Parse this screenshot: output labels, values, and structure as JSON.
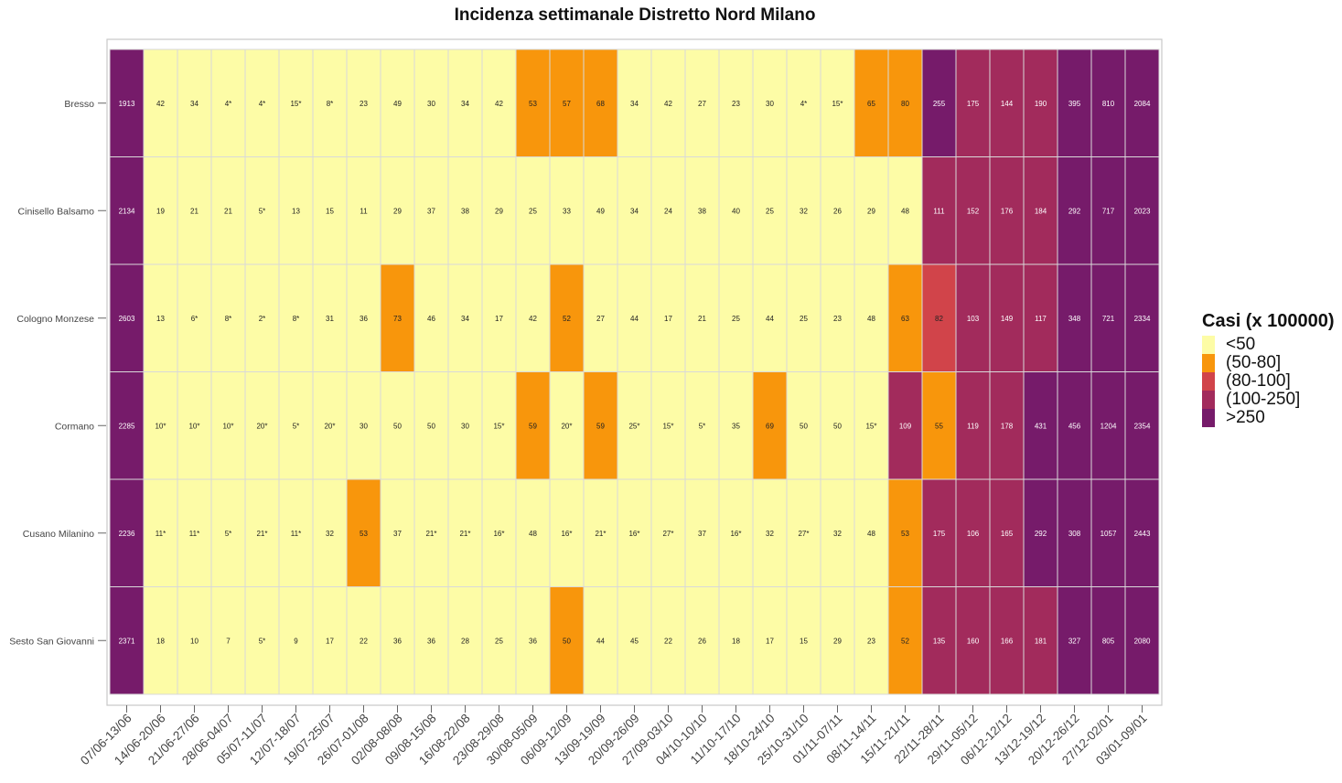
{
  "chart_data": {
    "type": "heatmap",
    "title": "Incidenza settimanale Distretto Nord Milano",
    "xlabel": "",
    "ylabel": "",
    "legend": {
      "title": "Casi (x 100000)",
      "placement": "right",
      "entries": [
        {
          "label": "<50",
          "color": "#fdfca6"
        },
        {
          "label": "(50-80]",
          "color": "#f8960c"
        },
        {
          "label": "(80-100]",
          "color": "#d1444a"
        },
        {
          "label": "(100-250]",
          "color": "#a22b5c"
        },
        {
          "label": ">250",
          "color": "#761b6a"
        }
      ]
    },
    "x_categories": [
      "07/06-13/06",
      "14/06-20/06",
      "21/06-27/06",
      "28/06-04/07",
      "05/07-11/07",
      "12/07-18/07",
      "19/07-25/07",
      "26/07-01/08",
      "02/08-08/08",
      "09/08-15/08",
      "16/08-22/08",
      "23/08-29/08",
      "30/08-05/09",
      "06/09-12/09",
      "13/09-19/09",
      "20/09-26/09",
      "27/09-03/10",
      "04/10-10/10",
      "11/10-17/10",
      "18/10-24/10",
      "25/10-31/10",
      "01/11-07/11",
      "08/11-14/11",
      "15/11-21/11",
      "22/11-28/11",
      "29/11-05/12",
      "06/12-12/12",
      "13/12-19/12",
      "20/12-26/12",
      "27/12-02/01",
      "03/01-09/01"
    ],
    "rows": [
      {
        "name": "Bresso",
        "labels": [
          "1913",
          "42",
          "34",
          "4*",
          "4*",
          "15*",
          "8*",
          "23",
          "49",
          "30",
          "34",
          "42",
          "53",
          "57",
          "68",
          "34",
          "42",
          "27",
          "23",
          "30",
          "4*",
          "15*",
          "65",
          "80",
          "255",
          "175",
          "144",
          "190",
          "395",
          "810",
          "2084"
        ],
        "classes": [
          4,
          0,
          0,
          0,
          0,
          0,
          0,
          0,
          0,
          0,
          0,
          0,
          1,
          1,
          1,
          0,
          0,
          0,
          0,
          0,
          0,
          0,
          1,
          1,
          4,
          3,
          3,
          3,
          4,
          4,
          4
        ]
      },
      {
        "name": "Cinisello Balsamo",
        "labels": [
          "2134",
          "19",
          "21",
          "21",
          "5*",
          "13",
          "15",
          "11",
          "29",
          "37",
          "38",
          "29",
          "25",
          "33",
          "49",
          "34",
          "24",
          "38",
          "40",
          "25",
          "32",
          "26",
          "29",
          "48",
          "111",
          "152",
          "176",
          "184",
          "292",
          "717",
          "2023"
        ],
        "classes": [
          4,
          0,
          0,
          0,
          0,
          0,
          0,
          0,
          0,
          0,
          0,
          0,
          0,
          0,
          0,
          0,
          0,
          0,
          0,
          0,
          0,
          0,
          0,
          0,
          3,
          3,
          3,
          3,
          4,
          4,
          4
        ]
      },
      {
        "name": "Cologno Monzese",
        "labels": [
          "2603",
          "13",
          "6*",
          "8*",
          "2*",
          "8*",
          "31",
          "36",
          "73",
          "46",
          "34",
          "17",
          "42",
          "52",
          "27",
          "44",
          "17",
          "21",
          "25",
          "44",
          "25",
          "23",
          "48",
          "63",
          "82",
          "103",
          "149",
          "117",
          "348",
          "721",
          "2334"
        ],
        "classes": [
          4,
          0,
          0,
          0,
          0,
          0,
          0,
          0,
          1,
          0,
          0,
          0,
          0,
          1,
          0,
          0,
          0,
          0,
          0,
          0,
          0,
          0,
          0,
          1,
          2,
          3,
          3,
          3,
          4,
          4,
          4
        ]
      },
      {
        "name": "Cormano",
        "labels": [
          "2285",
          "10*",
          "10*",
          "10*",
          "20*",
          "5*",
          "20*",
          "30",
          "50",
          "50",
          "30",
          "15*",
          "59",
          "20*",
          "59",
          "25*",
          "15*",
          "5*",
          "35",
          "69",
          "50",
          "50",
          "15*",
          "109",
          "55",
          "119",
          "178",
          "431",
          "456",
          "1204",
          "2354"
        ],
        "classes": [
          4,
          0,
          0,
          0,
          0,
          0,
          0,
          0,
          0,
          0,
          0,
          0,
          1,
          0,
          1,
          0,
          0,
          0,
          0,
          1,
          0,
          0,
          0,
          3,
          1,
          3,
          3,
          4,
          4,
          4,
          4
        ]
      },
      {
        "name": "Cusano Milanino",
        "labels": [
          "2236",
          "11*",
          "11*",
          "5*",
          "21*",
          "11*",
          "32",
          "53",
          "37",
          "21*",
          "21*",
          "16*",
          "48",
          "16*",
          "21*",
          "16*",
          "27*",
          "37",
          "16*",
          "32",
          "27*",
          "32",
          "48",
          "53",
          "175",
          "106",
          "165",
          "292",
          "308",
          "1057",
          "2443"
        ],
        "classes": [
          4,
          0,
          0,
          0,
          0,
          0,
          0,
          1,
          0,
          0,
          0,
          0,
          0,
          0,
          0,
          0,
          0,
          0,
          0,
          0,
          0,
          0,
          0,
          1,
          3,
          3,
          3,
          4,
          4,
          4,
          4
        ]
      },
      {
        "name": "Sesto San Giovanni",
        "labels": [
          "2371",
          "18",
          "10",
          "7",
          "5*",
          "9",
          "17",
          "22",
          "36",
          "36",
          "28",
          "25",
          "36",
          "50",
          "44",
          "45",
          "22",
          "26",
          "18",
          "17",
          "15",
          "29",
          "23",
          "52",
          "135",
          "160",
          "166",
          "181",
          "327",
          "805",
          "2080"
        ],
        "classes": [
          4,
          0,
          0,
          0,
          0,
          0,
          0,
          0,
          0,
          0,
          0,
          0,
          0,
          1,
          0,
          0,
          0,
          0,
          0,
          0,
          0,
          0,
          0,
          1,
          3,
          3,
          3,
          3,
          4,
          4,
          4
        ]
      }
    ],
    "grid": false
  }
}
